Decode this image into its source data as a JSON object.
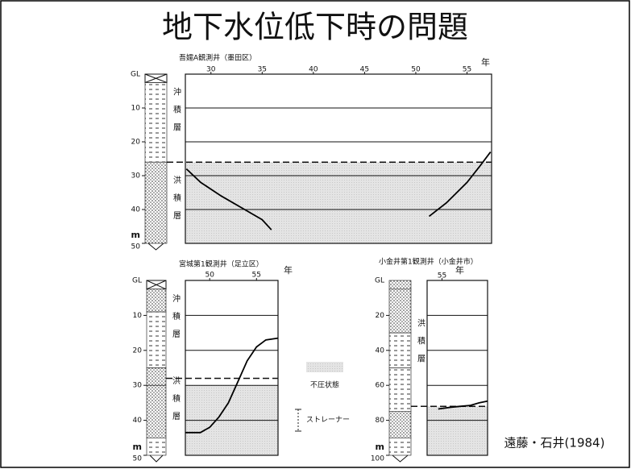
{
  "title": "地下水位低下時の問題",
  "citation": "遠藤・石井(1984)",
  "legend": {
    "unconfined": "不圧状態",
    "strainer": "ストレーナー"
  },
  "panels": [
    {
      "type": "line",
      "title": "吾嬬A観測井（墨田区）",
      "year_unit": "年",
      "depth_top": "GL",
      "depth_unit": "m",
      "strata": [
        "沖積層",
        "洪積層"
      ],
      "xlim": [
        27.5,
        57.4
      ],
      "xticks": [
        30,
        35,
        40,
        45,
        50,
        55
      ],
      "ylim": [
        0,
        50
      ],
      "yticks": [
        10,
        20,
        30,
        40,
        50
      ],
      "dashed": 26,
      "shade_top": 26,
      "series": [
        {
          "x": [
            27.6,
            29,
            31,
            33,
            35,
            35.9
          ],
          "values": [
            28,
            32,
            36,
            39.5,
            43,
            46
          ]
        },
        {
          "x": [
            51.3,
            53,
            55,
            56.3,
            57.3
          ],
          "values": [
            42,
            38,
            32,
            27,
            23
          ]
        }
      ]
    },
    {
      "type": "line",
      "title": "宮城第1観測井（足立区）",
      "year_unit": "年",
      "depth_top": "GL",
      "depth_unit": "m",
      "strata": [
        "沖積層",
        "洪積層"
      ],
      "xlim": [
        47.4,
        57.3
      ],
      "xticks": [
        50,
        55
      ],
      "ylim": [
        0,
        50
      ],
      "yticks": [
        10,
        20,
        30,
        40,
        50
      ],
      "dashed": 28,
      "shade_top": 30,
      "series": [
        {
          "x": [
            47.4,
            49,
            50,
            51,
            52,
            53,
            54,
            55,
            56,
            57.3
          ],
          "values": [
            43.5,
            43.5,
            42,
            39,
            35,
            29,
            23,
            19,
            17,
            16.5
          ]
        }
      ]
    },
    {
      "type": "line",
      "title": "小金井第1観測井（小金井市）",
      "year_unit": "年",
      "depth_top": "GL",
      "depth_unit": "m",
      "strata": [
        "洪積層"
      ],
      "xlim": [
        53.4,
        59.9
      ],
      "xticks": [
        55
      ],
      "ylim": [
        0,
        100
      ],
      "yticks": [
        20,
        40,
        60,
        80,
        100
      ],
      "dashed": 72,
      "shade_top": 72,
      "series": [
        {
          "x": [
            54.6,
            56,
            57,
            58,
            59,
            59.9
          ],
          "values": [
            73.5,
            72.5,
            72,
            71.5,
            70,
            69
          ]
        }
      ]
    }
  ]
}
